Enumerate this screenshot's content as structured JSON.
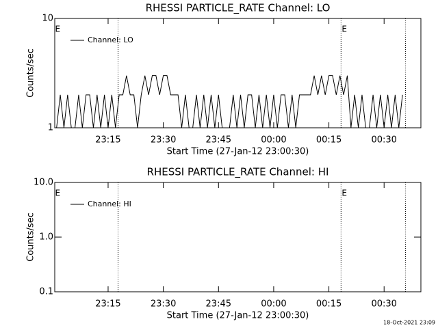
{
  "chart_data": [
    {
      "type": "line",
      "title": "RHESSI PARTICLE_RATE Channel: LO",
      "x_label": "Start Time (27-Jan-12 23:00:30)",
      "y_label": "Counts/sec",
      "log_y": true,
      "legend": "upper left",
      "x": [
        1,
        2,
        3,
        4,
        5,
        6,
        7,
        8,
        9,
        10,
        11,
        12,
        13,
        14,
        15,
        16,
        17,
        18,
        19,
        20,
        21,
        22,
        23,
        24,
        25,
        26,
        27,
        28,
        29,
        30,
        31,
        32,
        33,
        34,
        35,
        36,
        37,
        38,
        39,
        40,
        41,
        42,
        43,
        44,
        45,
        46,
        47,
        48,
        49,
        50,
        51,
        52,
        53,
        54,
        55,
        56,
        57,
        58,
        59,
        60,
        61,
        62,
        63,
        64,
        65,
        66,
        67,
        68,
        69,
        70,
        71,
        72,
        73,
        74,
        75,
        76,
        77,
        78,
        79,
        80,
        81,
        82,
        83,
        84,
        85,
        86,
        87,
        88,
        89,
        90,
        91,
        92,
        93,
        94,
        95
      ],
      "series": [
        {
          "name": "Channel: LO",
          "color": "#000000",
          "values": [
            1,
            2,
            1,
            2,
            1,
            1,
            2,
            1,
            2,
            2,
            1,
            2,
            1,
            2,
            1,
            2,
            1,
            2,
            2,
            3,
            2,
            2,
            1,
            2,
            3,
            2,
            3,
            3,
            2,
            3,
            3,
            2,
            2,
            2,
            1,
            2,
            1,
            1,
            2,
            1,
            2,
            1,
            2,
            1,
            2,
            1,
            1,
            1,
            2,
            1,
            2,
            1,
            2,
            2,
            1,
            2,
            1,
            2,
            1,
            2,
            1,
            2,
            2,
            1,
            2,
            1,
            2,
            2,
            2,
            2,
            3,
            2,
            3,
            2,
            3,
            3,
            2,
            3,
            2,
            3,
            1,
            2,
            1,
            2,
            1,
            1,
            2,
            1,
            2,
            1,
            2,
            1,
            2,
            1,
            2
          ]
        }
      ],
      "xlim": [
        0.5,
        100
      ],
      "xticks": [
        {
          "value": 15,
          "label": "23:15"
        },
        {
          "value": 30,
          "label": "23:30"
        },
        {
          "value": 45,
          "label": "23:45"
        },
        {
          "value": 60,
          "label": "00:00"
        },
        {
          "value": 75,
          "label": "00:15"
        },
        {
          "value": 90,
          "label": "00:30"
        }
      ],
      "ylim": [
        1,
        10
      ],
      "yticks": [
        1,
        10
      ],
      "vlines": [
        17.7,
        78.3,
        95.8
      ],
      "annotations": [
        {
          "x": 0.6,
          "text": "E"
        },
        {
          "x": 78.5,
          "text": "E"
        }
      ]
    },
    {
      "type": "line",
      "title": "RHESSI PARTICLE_RATE Channel: HI",
      "x_label": "Start Time (27-Jan-12 23:00:30)",
      "y_label": "Counts/sec",
      "log_y": true,
      "legend": "upper left",
      "x": [],
      "series": [
        {
          "name": "Channel: HI",
          "color": "#000000",
          "values": []
        }
      ],
      "xlim": [
        0.5,
        100
      ],
      "xticks": [
        {
          "value": 15,
          "label": "23:15"
        },
        {
          "value": 30,
          "label": "23:30"
        },
        {
          "value": 45,
          "label": "23:45"
        },
        {
          "value": 60,
          "label": "00:00"
        },
        {
          "value": 75,
          "label": "00:15"
        },
        {
          "value": 90,
          "label": "00:30"
        }
      ],
      "ylim": [
        0.1,
        10
      ],
      "yticks": [
        0.1,
        {
          "value": 1,
          "label": "1.0"
        },
        {
          "value": 10,
          "label": "10.0"
        }
      ],
      "vlines": [
        17.7,
        78.3,
        95.8
      ],
      "annotations": [
        {
          "x": 0.6,
          "text": "E"
        },
        {
          "x": 78.5,
          "text": "E"
        }
      ]
    }
  ],
  "footer": "18-Oct-2021 23:09"
}
